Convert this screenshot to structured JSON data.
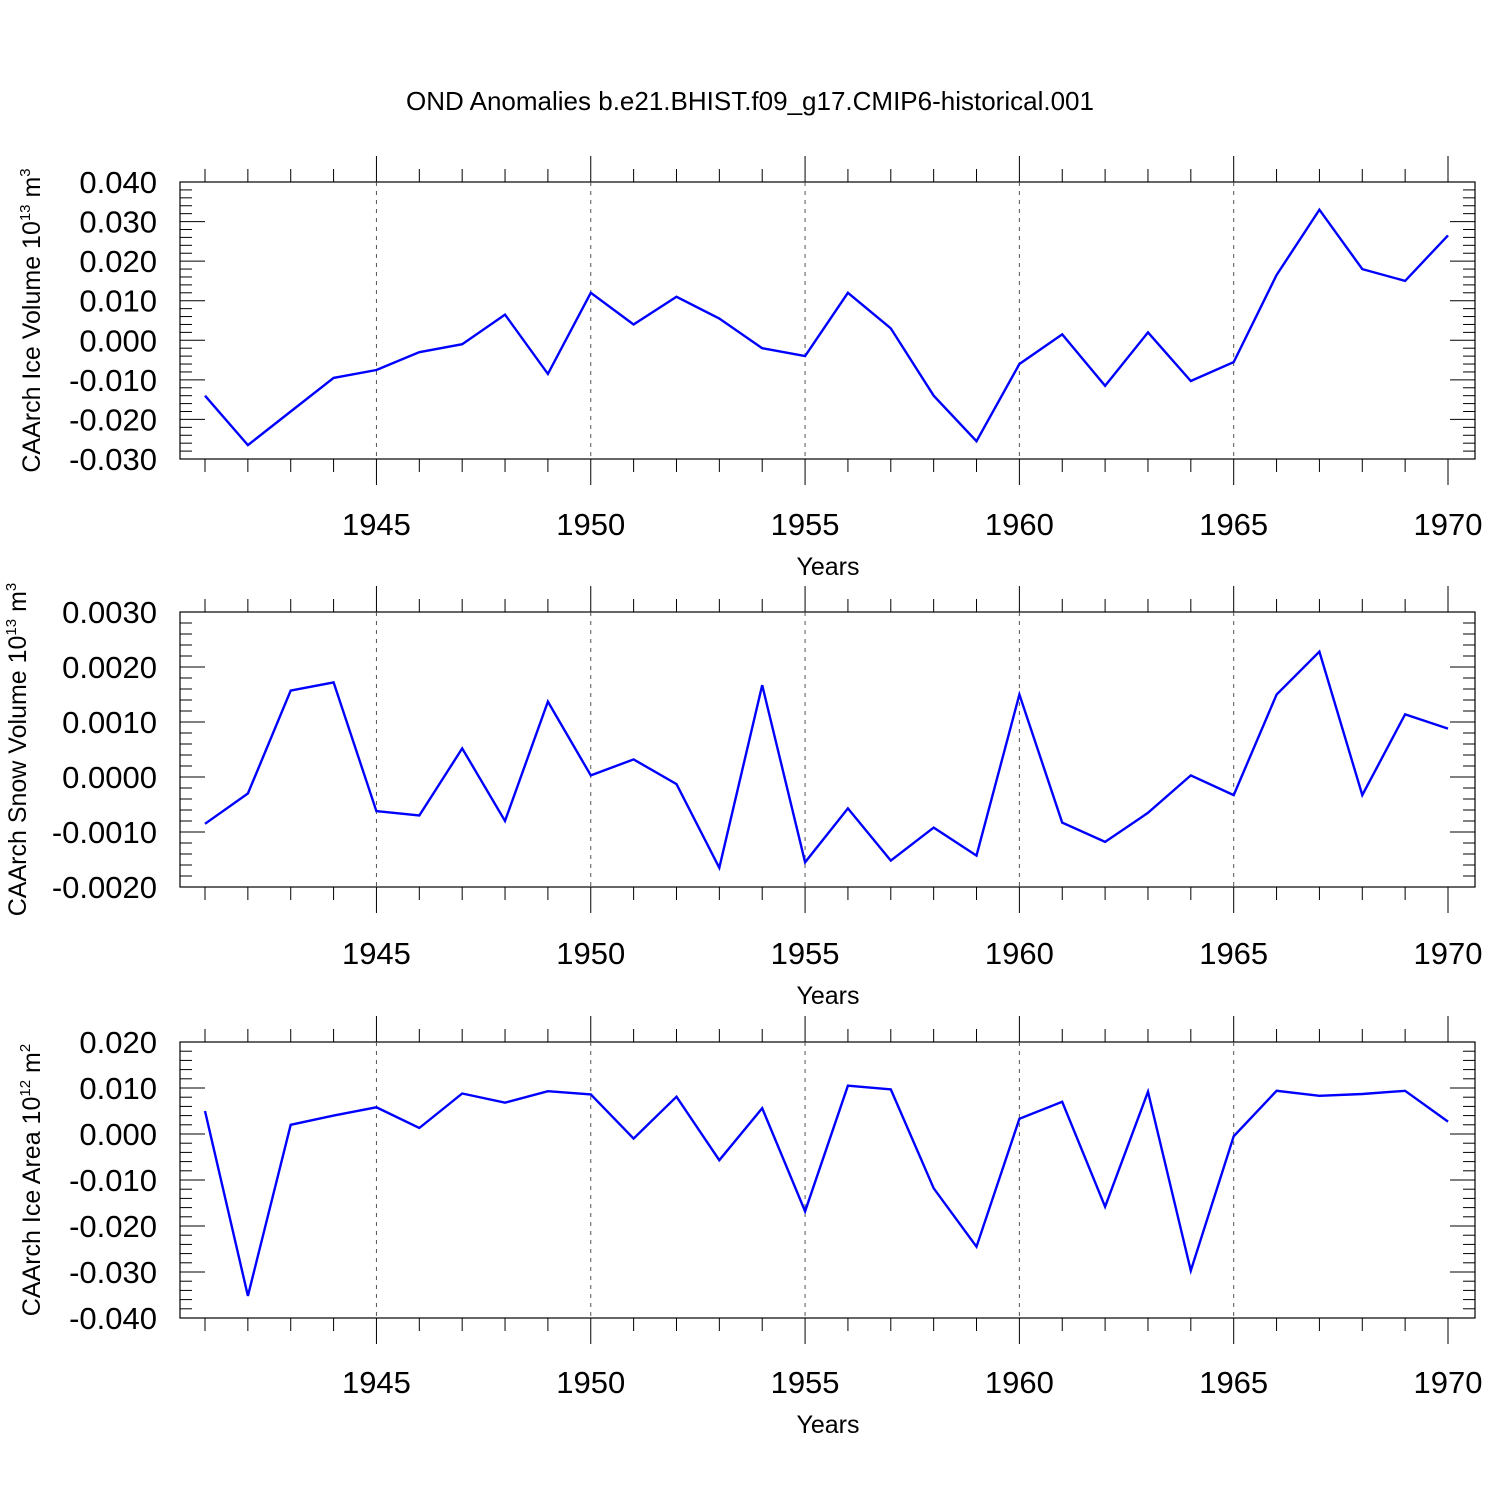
{
  "title": "OND Anomalies b.e21.BHIST.f09_g17.CMIP6-historical.001",
  "colors": {
    "line": "#0000ff",
    "axis": "#000000",
    "grid": "#555555"
  },
  "chart_data": [
    {
      "type": "line",
      "xlabel": "Years",
      "ylabel": {
        "text": "CAArch Ice Volume 10",
        "exp": "13",
        "unit": " m",
        "unit_exp": "3"
      },
      "xlim": [
        1941,
        1970
      ],
      "ylim": [
        -0.03,
        0.04
      ],
      "yticks": [
        "0.040",
        "0.030",
        "0.020",
        "0.010",
        "0.000",
        "-0.010",
        "-0.020",
        "-0.030"
      ],
      "xticks": [
        "1945",
        "1950",
        "1955",
        "1960",
        "1965",
        "1970"
      ],
      "grid": "vertical dashed at major x ticks",
      "x": [
        1941,
        1942,
        1943,
        1944,
        1945,
        1946,
        1947,
        1948,
        1949,
        1950,
        1951,
        1952,
        1953,
        1954,
        1955,
        1956,
        1957,
        1958,
        1959,
        1960,
        1961,
        1962,
        1963,
        1964,
        1965,
        1966,
        1967,
        1968,
        1969,
        1970
      ],
      "values": [
        -0.014,
        -0.0265,
        -0.018,
        -0.0095,
        -0.0075,
        -0.003,
        -0.001,
        0.0065,
        -0.0085,
        0.012,
        0.004,
        0.011,
        0.0055,
        -0.002,
        -0.004,
        0.012,
        0.003,
        -0.014,
        -0.0255,
        -0.006,
        0.0015,
        -0.0115,
        0.002,
        -0.0103,
        -0.0055,
        0.0165,
        0.033,
        0.018,
        0.015,
        0.0265
      ]
    },
    {
      "type": "line",
      "xlabel": "Years",
      "ylabel": {
        "text": "CAArch Snow Volume 10",
        "exp": "13",
        "unit": " m",
        "unit_exp": "3"
      },
      "xlim": [
        1941,
        1970
      ],
      "ylim": [
        -0.002,
        0.003
      ],
      "yticks": [
        "0.0030",
        "0.0020",
        "0.0010",
        "0.0000",
        "-0.0010",
        "-0.0020"
      ],
      "xticks": [
        "1945",
        "1950",
        "1955",
        "1960",
        "1965",
        "1970"
      ],
      "grid": "vertical dashed at major x ticks",
      "x": [
        1941,
        1942,
        1943,
        1944,
        1945,
        1946,
        1947,
        1948,
        1949,
        1950,
        1951,
        1952,
        1953,
        1954,
        1955,
        1956,
        1957,
        1958,
        1959,
        1960,
        1961,
        1962,
        1963,
        1964,
        1965,
        1966,
        1967,
        1968,
        1969,
        1970
      ],
      "values": [
        -0.00085,
        -0.0003,
        0.00157,
        0.00172,
        -0.00062,
        -0.0007,
        0.00052,
        -0.0008,
        0.00137,
        3e-05,
        0.00032,
        -0.00013,
        -0.00165,
        0.00167,
        -0.00155,
        -0.00057,
        -0.00152,
        -0.00092,
        -0.00143,
        0.0015,
        -0.00083,
        -0.00118,
        -0.00065,
        3e-05,
        -0.00033,
        0.0015,
        0.00228,
        -0.00033,
        0.00114,
        0.00088
      ]
    },
    {
      "type": "line",
      "xlabel": "Years",
      "ylabel": {
        "text": "CAArch Ice Area 10",
        "exp": "12",
        "unit": " m",
        "unit_exp": "2"
      },
      "xlim": [
        1941,
        1970
      ],
      "ylim": [
        -0.04,
        0.02
      ],
      "yticks": [
        "0.020",
        "0.010",
        "0.000",
        "-0.010",
        "-0.020",
        "-0.030",
        "-0.040"
      ],
      "xticks": [
        "1945",
        "1950",
        "1955",
        "1960",
        "1965",
        "1970"
      ],
      "grid": "vertical dashed at major x ticks",
      "x": [
        1941,
        1942,
        1943,
        1944,
        1945,
        1946,
        1947,
        1948,
        1949,
        1950,
        1951,
        1952,
        1953,
        1954,
        1955,
        1956,
        1957,
        1958,
        1959,
        1960,
        1961,
        1962,
        1963,
        1964,
        1965,
        1966,
        1967,
        1968,
        1969,
        1970
      ],
      "values": [
        0.005,
        -0.0352,
        0.002,
        0.004,
        0.0058,
        0.0013,
        0.0088,
        0.0068,
        0.0093,
        0.0086,
        -0.001,
        0.0081,
        -0.0057,
        0.0056,
        -0.0168,
        0.0105,
        0.0097,
        -0.0118,
        -0.0245,
        0.0033,
        0.007,
        -0.0158,
        0.0092,
        -0.0297,
        -0.0005,
        0.0094,
        0.0083,
        0.0087,
        0.0094,
        0.0027
      ]
    }
  ]
}
